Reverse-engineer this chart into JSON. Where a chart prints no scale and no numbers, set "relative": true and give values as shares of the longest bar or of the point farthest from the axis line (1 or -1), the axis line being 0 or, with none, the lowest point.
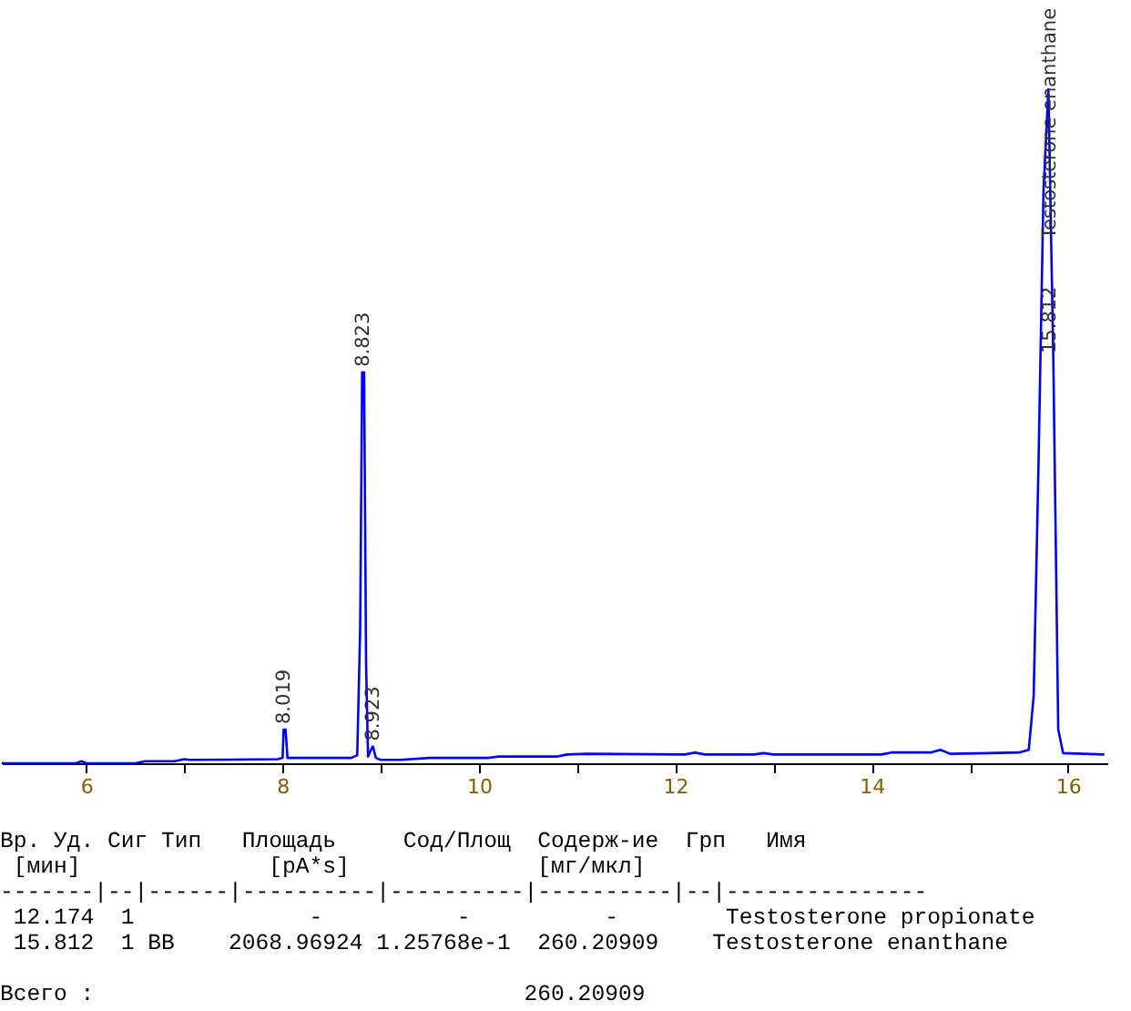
{
  "chart_data": {
    "type": "line",
    "relative": true,
    "x": [
      5.14,
      5.9,
      5.95,
      6.0,
      6.5,
      6.6,
      6.9,
      7.0,
      7.05,
      7.95,
      8.0,
      8.01,
      8.03,
      8.05,
      8.7,
      8.76,
      8.79,
      8.81,
      8.83,
      8.85,
      8.87,
      8.9,
      8.92,
      8.95,
      9.0,
      9.2,
      9.5,
      10.1,
      10.2,
      10.8,
      10.9,
      11.1,
      12.1,
      12.2,
      12.3,
      12.8,
      12.9,
      13.0,
      14.1,
      14.2,
      14.6,
      14.7,
      14.8,
      15.2,
      15.5,
      15.6,
      15.65,
      15.7,
      15.75,
      15.8,
      15.85,
      15.9,
      15.95,
      16.37
    ],
    "series": [
      {
        "color": "#0000ff",
        "values": [
          0,
          0,
          0.003,
          0,
          0,
          0.003,
          0.003,
          0.006,
          0.005,
          0.006,
          0.008,
          0.05,
          0.05,
          0.008,
          0.008,
          0.012,
          0.2,
          0.58,
          0.58,
          0.15,
          0.01,
          0.02,
          0.025,
          0.008,
          0.005,
          0.005,
          0.008,
          0.008,
          0.01,
          0.01,
          0.013,
          0.014,
          0.013,
          0.016,
          0.013,
          0.013,
          0.015,
          0.013,
          0.013,
          0.016,
          0.016,
          0.02,
          0.014,
          0.015,
          0.016,
          0.02,
          0.1,
          0.45,
          0.85,
          1.0,
          0.6,
          0.05,
          0.015,
          0.013
        ]
      }
    ],
    "xlim": [
      5.14,
      16.4
    ],
    "xticks": [
      6,
      {
        "value": 7,
        "label": null
      },
      8,
      {
        "value": 9,
        "label": null
      },
      10,
      {
        "value": 11,
        "label": null
      },
      12,
      {
        "value": 13,
        "label": null
      },
      14,
      {
        "value": 15,
        "label": null
      },
      16
    ],
    "annotations": [
      {
        "text": "8.019",
        "x": 8.019,
        "y": 0.05
      },
      {
        "text": "8.823",
        "x": 8.823,
        "y": 0.58
      },
      {
        "text": "8.923",
        "x": 8.923,
        "y": 0.025
      },
      {
        "text": "15.812",
        "x": 15.812,
        "y": 0.6
      },
      {
        "text": "Testosterone enanthane",
        "x": 15.812,
        "y": 0.77
      },
      "Вр. Уд. Сиг Тип   Площадь     Сод/Площ  Содерж-ие  Грп   Имя",
      " [мин]              [pA*s]              [мг/мкл]",
      "-------|--|------|----------|----------|----------|--|---------------",
      " 12.174  1             -          -          -        Testosterone propionate",
      " 15.812  1 BB    2068.96924 1.25768e-1  260.20909    Testosterone enanthane",
      "Всего :                                260.20909"
    ]
  }
}
